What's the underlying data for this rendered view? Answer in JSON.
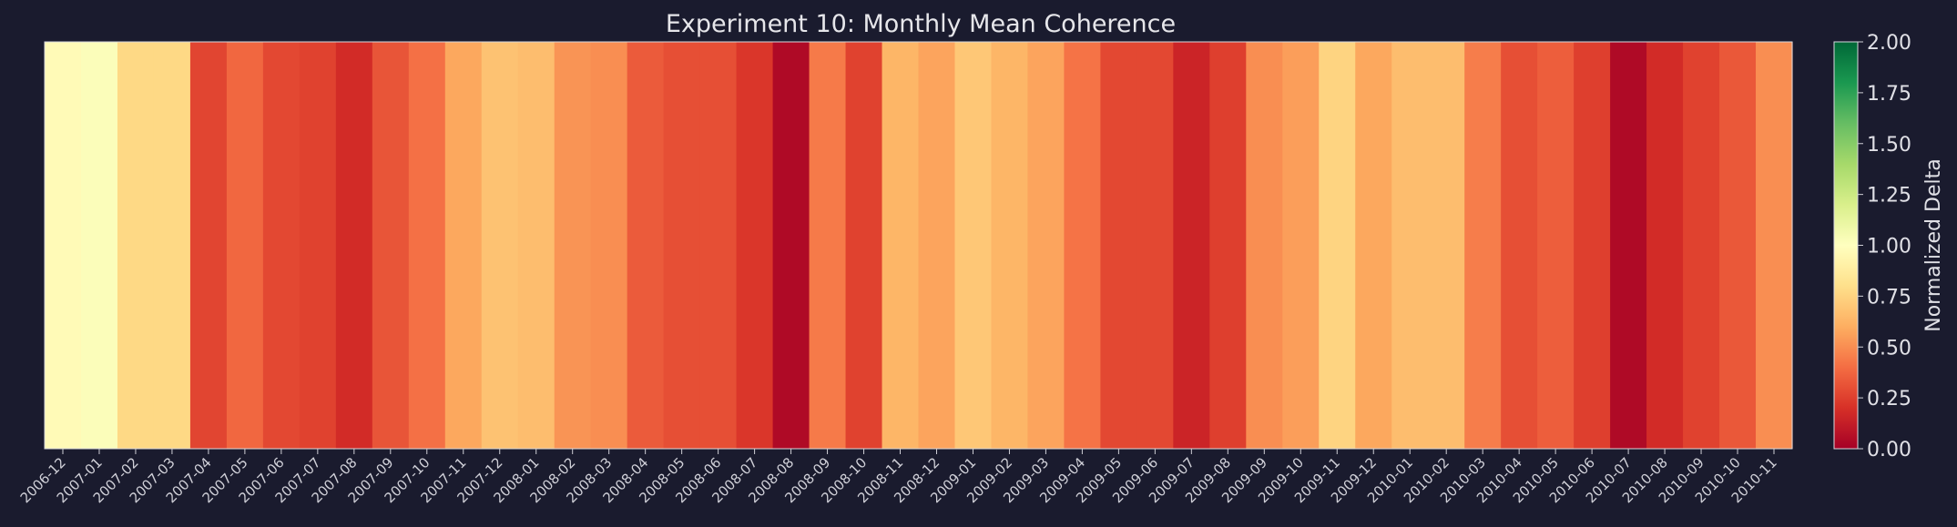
{
  "chart_data": {
    "type": "heatmap",
    "title": "Experiment 10: Monthly Mean Coherence",
    "categories": [
      "2006-12",
      "2007-01",
      "2007-02",
      "2007-03",
      "2007-04",
      "2007-05",
      "2007-06",
      "2007-07",
      "2007-08",
      "2007-09",
      "2007-10",
      "2007-11",
      "2007-12",
      "2008-01",
      "2008-02",
      "2008-03",
      "2008-04",
      "2008-05",
      "2008-06",
      "2008-07",
      "2008-08",
      "2008-09",
      "2008-10",
      "2008-11",
      "2008-12",
      "2009-01",
      "2009-02",
      "2009-03",
      "2009-04",
      "2009-05",
      "2009-06",
      "2009-07",
      "2009-08",
      "2009-09",
      "2009-10",
      "2009-11",
      "2009-12",
      "2010-01",
      "2010-02",
      "2010-03",
      "2010-04",
      "2010-05",
      "2010-06",
      "2010-07",
      "2010-08",
      "2010-09",
      "2010-10",
      "2010-11"
    ],
    "values": [
      0.97,
      1.02,
      0.77,
      0.77,
      0.27,
      0.38,
      0.28,
      0.26,
      0.18,
      0.32,
      0.41,
      0.58,
      0.68,
      0.66,
      0.52,
      0.5,
      0.34,
      0.3,
      0.3,
      0.22,
      0.04,
      0.44,
      0.26,
      0.63,
      0.57,
      0.7,
      0.63,
      0.57,
      0.42,
      0.28,
      0.28,
      0.15,
      0.25,
      0.5,
      0.55,
      0.75,
      0.58,
      0.66,
      0.66,
      0.45,
      0.3,
      0.35,
      0.25,
      0.04,
      0.18,
      0.26,
      0.33,
      0.5
    ],
    "colorscale": "RdYlGn",
    "vmin": 0.0,
    "vmax": 2.0,
    "colorbar": {
      "label": "Normalized Delta",
      "ticks": [
        "0.00",
        "0.25",
        "0.50",
        "0.75",
        "1.00",
        "1.25",
        "1.50",
        "1.75",
        "2.00"
      ]
    }
  }
}
